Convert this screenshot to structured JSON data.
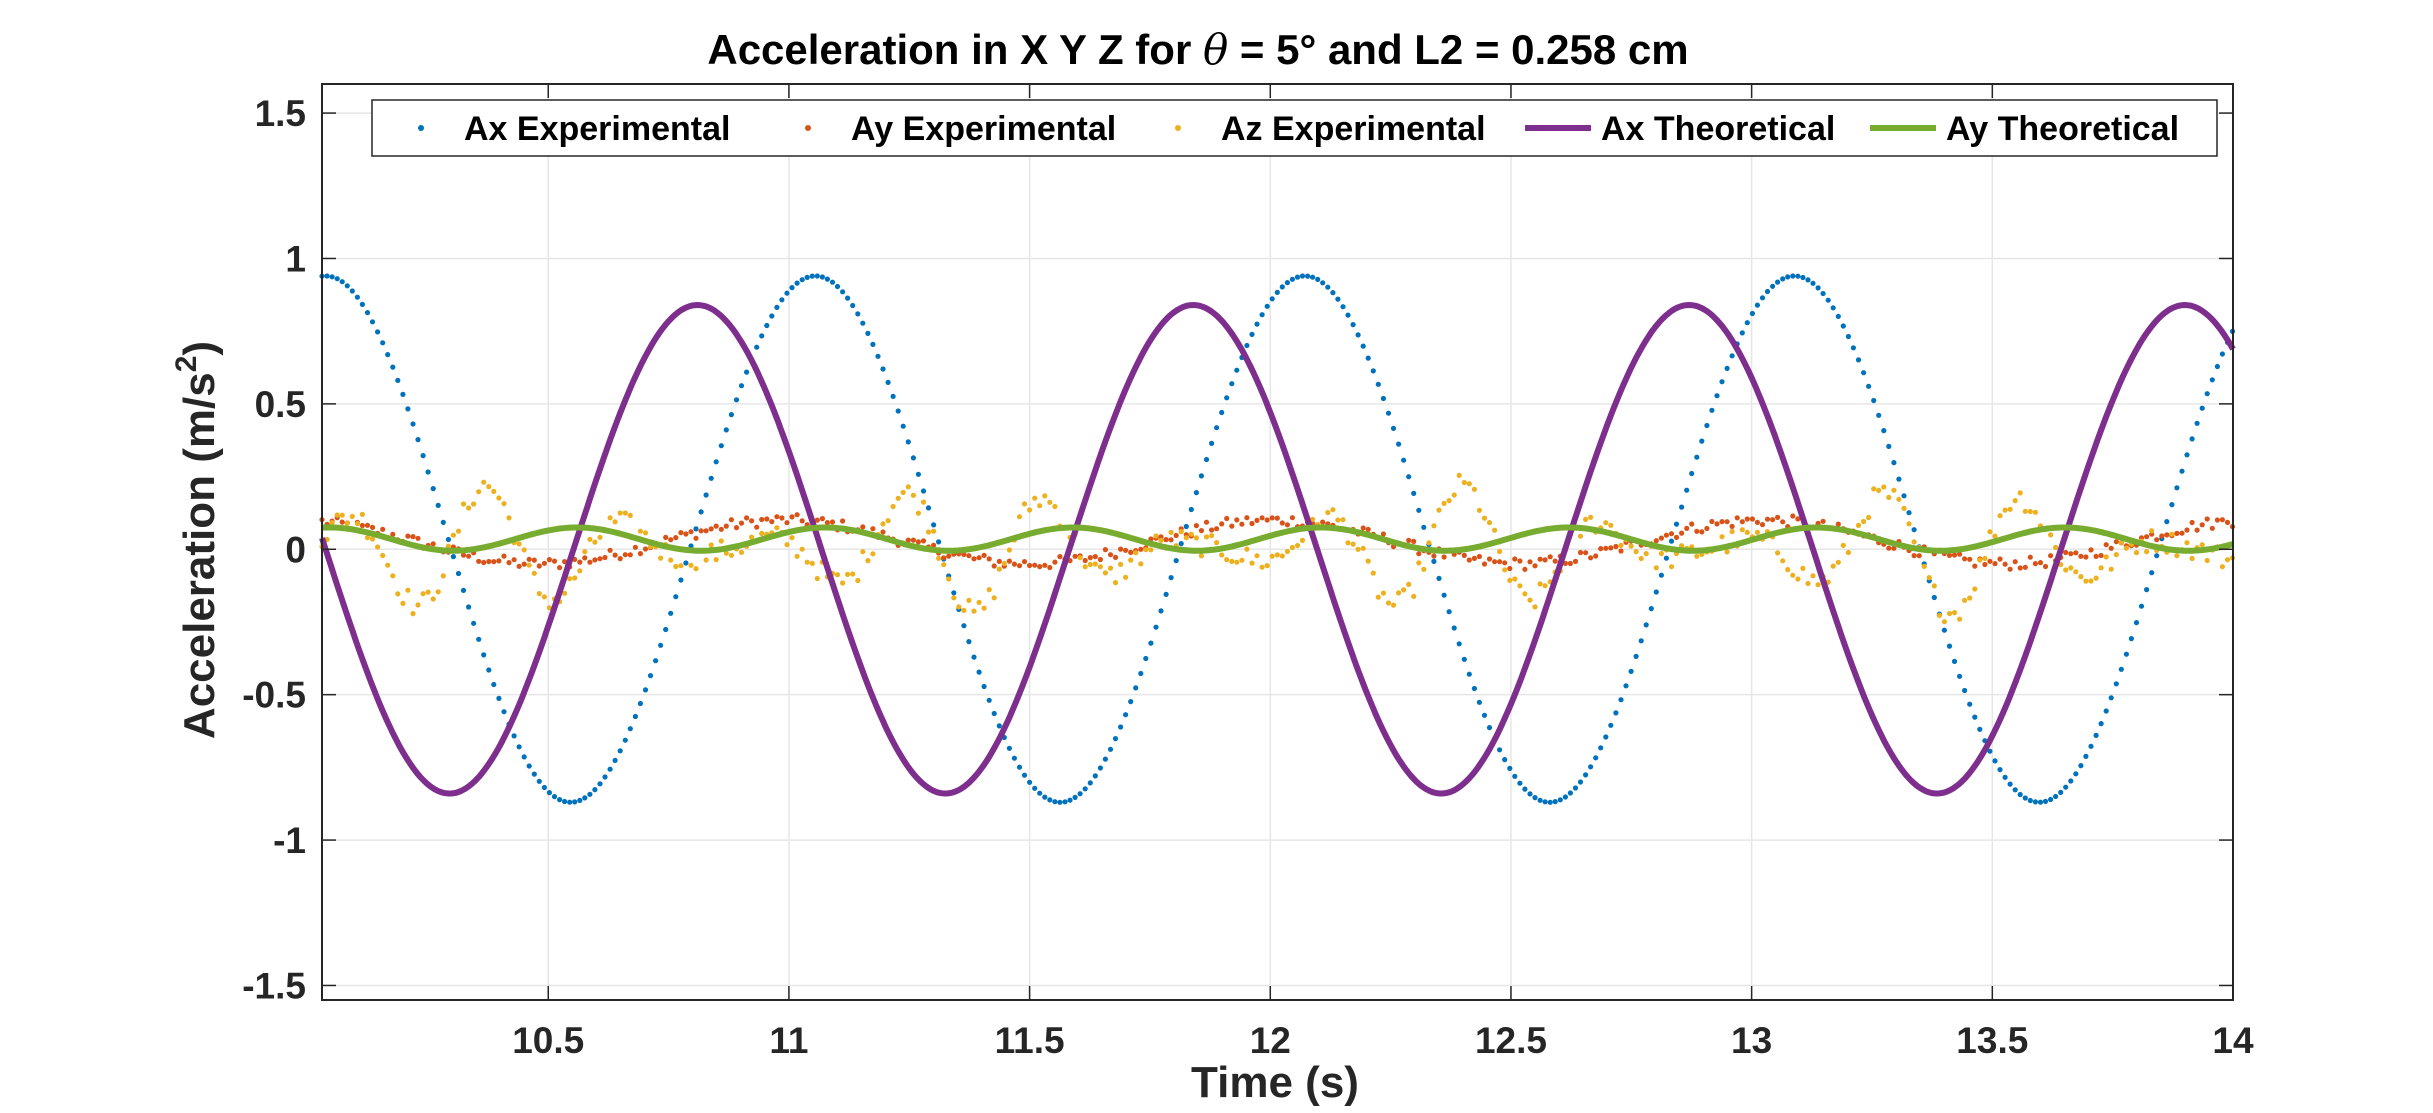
{
  "chart_data": {
    "type": "line",
    "title": "Acceleration in X Y Z for θ = 5° and L2 = 0.258 cm",
    "title_parts": {
      "before": "Acceleration in X Y Z for ",
      "symbol": "θ",
      "after": " = 5° and L2 = 0.258 cm"
    },
    "xlabel": "Time (s)",
    "ylabel": "Acceleration (m/s",
    "ylabel_sup": "2",
    "ylabel_close": ")",
    "xlim": [
      10.03,
      14.0
    ],
    "ylim": [
      -1.55,
      1.6
    ],
    "xticks": [
      10.5,
      11,
      11.5,
      12,
      12.5,
      13,
      13.5,
      14
    ],
    "xtick_labels": [
      "10.5",
      "11",
      "11.5",
      "12",
      "12.5",
      "13",
      "13.5",
      "14"
    ],
    "yticks": [
      -1.5,
      -1,
      -0.5,
      0,
      0.5,
      1,
      1.5
    ],
    "ytick_labels": [
      "-1.5",
      "-1",
      "-0.5",
      "0",
      "0.5",
      "1",
      "1.5"
    ],
    "grid": true,
    "legend_position": "top",
    "series": [
      {
        "name": "Ax Experimental",
        "style": "dots",
        "color": "#0072BD",
        "model": {
          "kind": "sine",
          "amplitude": 0.905,
          "offset": 0.035,
          "period": 1.017,
          "peak_time": 11.055
        }
      },
      {
        "name": "Ay Experimental",
        "style": "dots",
        "color": "#D95319",
        "model": {
          "kind": "sine",
          "amplitude": 0.075,
          "offset": 0.025,
          "period": 1.017,
          "peak_time": 10.99,
          "noise": 0.02
        }
      },
      {
        "name": "Az Experimental",
        "style": "dots",
        "color": "#EDB120",
        "model": {
          "kind": "wobble",
          "amplitude": 0.22,
          "offset": 0.0,
          "period": 0.29,
          "peak_time": 10.95,
          "noise": 0.04
        }
      },
      {
        "name": "Ax Theoretical",
        "style": "line",
        "color": "#7E2F8E",
        "model": {
          "kind": "sine",
          "amplitude": 0.84,
          "offset": 0.0,
          "period": 1.03,
          "peak_time": 10.81
        }
      },
      {
        "name": "Ay Theoretical",
        "style": "line",
        "color": "#77AC30",
        "model": {
          "kind": "sine",
          "amplitude": 0.04,
          "offset": 0.035,
          "period": 0.515,
          "peak_time": 10.56
        }
      }
    ]
  }
}
